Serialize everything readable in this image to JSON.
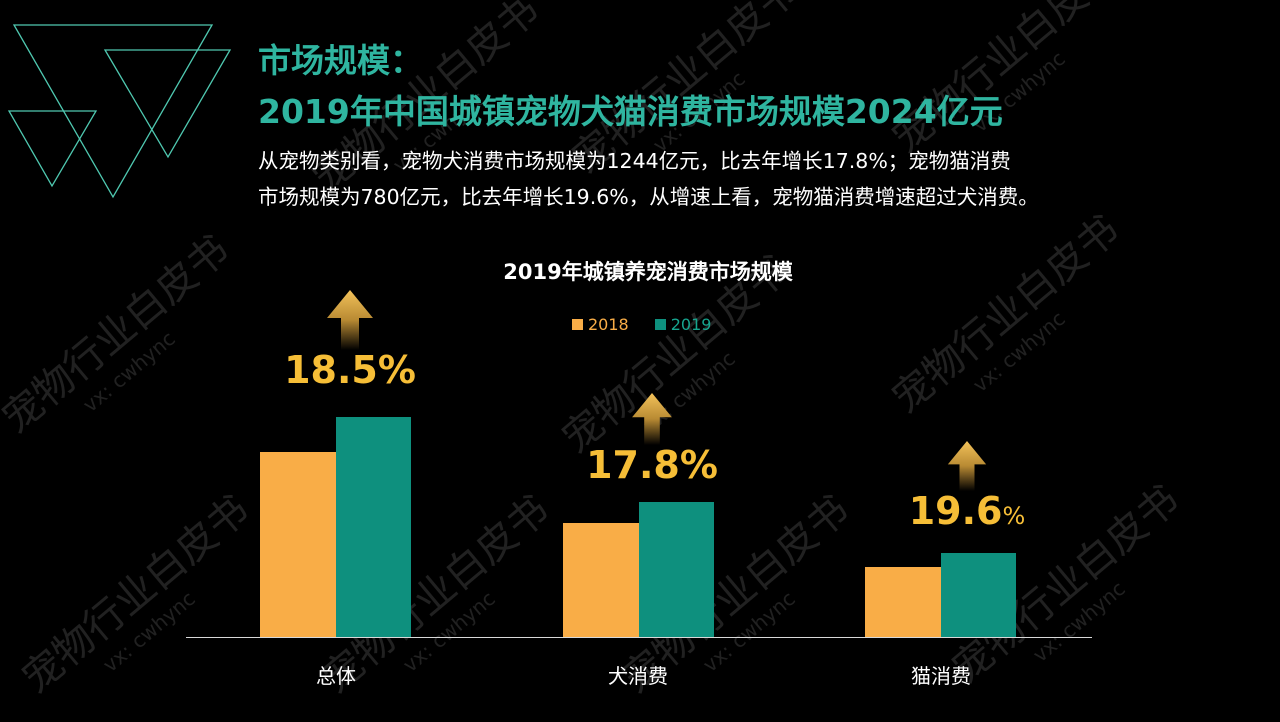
{
  "header": {
    "title_line1": "市场规模：",
    "title_line2": "2019年中国城镇宠物犬猫消费市场规模2024亿元"
  },
  "description": {
    "line1": "从宠物类别看，宠物犬消费市场规模为1244亿元，比去年增长17.8%；宠物猫消费",
    "line2": "市场规模为780亿元，比去年增长19.6%，从增速上看，宠物猫消费增速超过犬消费。"
  },
  "colors": {
    "title_teal": "#2fb5a0",
    "bar_2018": "#f9ad47",
    "bar_2019": "#0e907e",
    "growth_gold": "#f6be37",
    "background": "#000000"
  },
  "legend": [
    {
      "label": "2018",
      "color": "#f9ad47"
    },
    {
      "label": "2019",
      "color": "#0e907e"
    }
  ],
  "growth_labels": {
    "total": "18.5%",
    "dog": "17.8%",
    "cat_number": "19.6",
    "cat_percent": "%"
  },
  "watermark": {
    "text": "宠物行业白皮书",
    "sub": "vx: cwhync"
  },
  "chart_data": {
    "type": "bar",
    "title": "2019年城镇养宠消费市场规模",
    "categories": [
      "总体",
      "犬消费",
      "猫消费"
    ],
    "series": [
      {
        "name": "2018",
        "values": [
          1708,
          1056,
          652
        ]
      },
      {
        "name": "2019",
        "values": [
          2024,
          1244,
          780
        ]
      }
    ],
    "growth_rates": [
      "18.5%",
      "17.8%",
      "19.6%"
    ],
    "xlabel": "",
    "ylabel": "亿元",
    "ylim": [
      0,
      2024
    ],
    "grid": false,
    "legend_position": "top",
    "y_axis_visible": false
  }
}
